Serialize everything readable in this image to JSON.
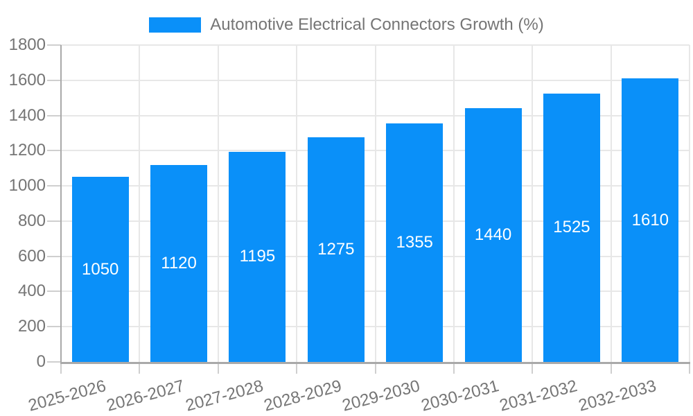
{
  "legend": {
    "label": "Automotive Electrical Connectors Growth (%)"
  },
  "chart_data": {
    "type": "bar",
    "title": "Automotive Electrical Connectors Growth (%)",
    "categories": [
      "2025-2026",
      "2026-2027",
      "2027-2028",
      "2028-2029",
      "2029-2030",
      "2030-2031",
      "2031-2032",
      "2032-2033"
    ],
    "series": [
      {
        "name": "Automotive Electrical Connectors Growth (%)",
        "values": [
          1050,
          1120,
          1195,
          1275,
          1355,
          1440,
          1525,
          1610
        ],
        "color": "#0a90f9"
      }
    ],
    "bar_value_labels": [
      "1050",
      "1120",
      "1195",
      "1275",
      "1355",
      "1440",
      "1525",
      "1610"
    ],
    "xlabel": "",
    "ylabel": "",
    "ylim": [
      0,
      1800
    ],
    "y_tick_step": 200,
    "y_tick_labels": [
      "0",
      "200",
      "400",
      "600",
      "800",
      "1000",
      "1200",
      "1400",
      "1600",
      "1800"
    ],
    "grid": true,
    "legend_position": "top-center",
    "colors": {
      "bar": "#0a90f9",
      "bar_value_text": "#ffffff",
      "axis_text": "#757575",
      "gridline": "#e7e7e7",
      "axis_line": "#a9a9a9"
    }
  }
}
